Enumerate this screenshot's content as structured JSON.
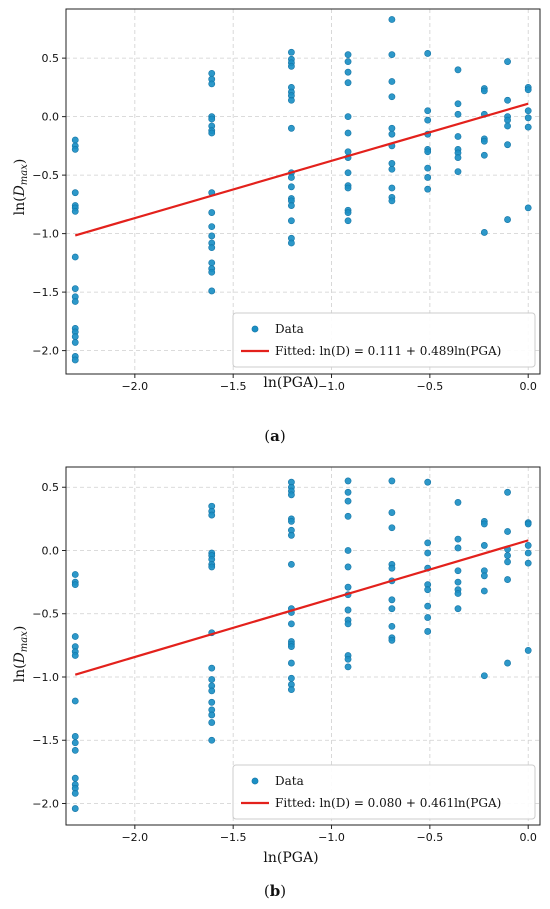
{
  "chart_data": [
    {
      "type": "scatter",
      "caption_prefix": "(",
      "caption_letter": "a",
      "caption_suffix": ")",
      "xlabel": "ln(PGA)",
      "ylabel_prefix": "ln(",
      "ylabel_D": "D",
      "ylabel_sub": "max",
      "ylabel_suffix": ")",
      "xlim": [
        -2.35,
        0.06
      ],
      "ylim": [
        -2.2,
        0.92
      ],
      "xticks": [
        -2.0,
        -1.5,
        -1.0,
        -0.5,
        0.0
      ],
      "xtick_labels": [
        "−2.0",
        "−1.5",
        "−1.0",
        "−0.5",
        "0.0"
      ],
      "yticks": [
        -2.0,
        -1.5,
        -1.0,
        -0.5,
        0.0,
        0.5
      ],
      "ytick_labels": [
        "−2.0",
        "−1.5",
        "−1.0",
        "−0.5",
        "0.0",
        "0.5"
      ],
      "grid": true,
      "legend_position": "lower-right",
      "legend": {
        "data_label": "Data",
        "fit_label": "Fitted: ln(D) = 0.111 + 0.489ln(PGA)"
      },
      "fit": {
        "intercept": 0.111,
        "slope": 0.489,
        "x_range": [
          -2.303,
          0.0
        ]
      },
      "series": [
        {
          "name": "Data",
          "points": [
            [
              -2.303,
              -0.2
            ],
            [
              -2.303,
              -0.25
            ],
            [
              -2.303,
              -0.28
            ],
            [
              -2.303,
              -0.65
            ],
            [
              -2.303,
              -0.76
            ],
            [
              -2.303,
              -0.78
            ],
            [
              -2.303,
              -0.81
            ],
            [
              -2.303,
              -1.2
            ],
            [
              -2.303,
              -1.47
            ],
            [
              -2.303,
              -1.54
            ],
            [
              -2.303,
              -1.58
            ],
            [
              -2.303,
              -1.81
            ],
            [
              -2.303,
              -1.84
            ],
            [
              -2.303,
              -1.88
            ],
            [
              -2.303,
              -1.93
            ],
            [
              -2.303,
              -2.05
            ],
            [
              -2.303,
              -2.08
            ],
            [
              -1.609,
              0.37
            ],
            [
              -1.609,
              0.32
            ],
            [
              -1.609,
              0.28
            ],
            [
              -1.609,
              0.0
            ],
            [
              -1.609,
              -0.02
            ],
            [
              -1.609,
              -0.08
            ],
            [
              -1.609,
              -0.12
            ],
            [
              -1.609,
              -0.14
            ],
            [
              -1.609,
              -0.65
            ],
            [
              -1.609,
              -0.82
            ],
            [
              -1.609,
              -0.94
            ],
            [
              -1.609,
              -1.02
            ],
            [
              -1.609,
              -1.08
            ],
            [
              -1.609,
              -1.12
            ],
            [
              -1.609,
              -1.25
            ],
            [
              -1.609,
              -1.3
            ],
            [
              -1.609,
              -1.33
            ],
            [
              -1.609,
              -1.49
            ],
            [
              -1.204,
              0.55
            ],
            [
              -1.204,
              0.49
            ],
            [
              -1.204,
              0.46
            ],
            [
              -1.204,
              0.43
            ],
            [
              -1.204,
              0.25
            ],
            [
              -1.204,
              0.21
            ],
            [
              -1.204,
              0.18
            ],
            [
              -1.204,
              0.14
            ],
            [
              -1.204,
              -0.1
            ],
            [
              -1.204,
              -0.48
            ],
            [
              -1.204,
              -0.52
            ],
            [
              -1.204,
              -0.6
            ],
            [
              -1.204,
              -0.7
            ],
            [
              -1.204,
              -0.72
            ],
            [
              -1.204,
              -0.76
            ],
            [
              -1.204,
              -0.89
            ],
            [
              -1.204,
              -1.04
            ],
            [
              -1.204,
              -1.08
            ],
            [
              -0.916,
              0.53
            ],
            [
              -0.916,
              0.47
            ],
            [
              -0.916,
              0.38
            ],
            [
              -0.916,
              0.29
            ],
            [
              -0.916,
              0.0
            ],
            [
              -0.916,
              -0.14
            ],
            [
              -0.916,
              -0.3
            ],
            [
              -0.916,
              -0.35
            ],
            [
              -0.916,
              -0.48
            ],
            [
              -0.916,
              -0.59
            ],
            [
              -0.916,
              -0.61
            ],
            [
              -0.916,
              -0.8
            ],
            [
              -0.916,
              -0.82
            ],
            [
              -0.916,
              -0.89
            ],
            [
              -0.693,
              0.83
            ],
            [
              -0.693,
              0.53
            ],
            [
              -0.693,
              0.3
            ],
            [
              -0.693,
              0.17
            ],
            [
              -0.693,
              -0.1
            ],
            [
              -0.693,
              -0.15
            ],
            [
              -0.693,
              -0.25
            ],
            [
              -0.693,
              -0.4
            ],
            [
              -0.693,
              -0.45
            ],
            [
              -0.693,
              -0.61
            ],
            [
              -0.693,
              -0.69
            ],
            [
              -0.693,
              -0.72
            ],
            [
              -0.511,
              0.54
            ],
            [
              -0.511,
              0.05
            ],
            [
              -0.511,
              -0.03
            ],
            [
              -0.511,
              -0.15
            ],
            [
              -0.511,
              -0.28
            ],
            [
              -0.511,
              -0.3
            ],
            [
              -0.511,
              -0.44
            ],
            [
              -0.511,
              -0.52
            ],
            [
              -0.511,
              -0.62
            ],
            [
              -0.357,
              0.4
            ],
            [
              -0.357,
              0.11
            ],
            [
              -0.357,
              0.02
            ],
            [
              -0.357,
              -0.17
            ],
            [
              -0.357,
              -0.28
            ],
            [
              -0.357,
              -0.31
            ],
            [
              -0.357,
              -0.35
            ],
            [
              -0.357,
              -0.47
            ],
            [
              -0.223,
              0.24
            ],
            [
              -0.223,
              0.22
            ],
            [
              -0.223,
              0.02
            ],
            [
              -0.223,
              -0.19
            ],
            [
              -0.223,
              -0.21
            ],
            [
              -0.223,
              -0.33
            ],
            [
              -0.223,
              -0.99
            ],
            [
              -0.105,
              0.47
            ],
            [
              -0.105,
              0.14
            ],
            [
              -0.105,
              0.0
            ],
            [
              -0.105,
              -0.03
            ],
            [
              -0.105,
              -0.08
            ],
            [
              -0.105,
              -0.24
            ],
            [
              -0.105,
              -0.88
            ],
            [
              0.0,
              0.25
            ],
            [
              0.0,
              0.23
            ],
            [
              0.0,
              0.05
            ],
            [
              0.0,
              -0.01
            ],
            [
              0.0,
              -0.09
            ],
            [
              0.0,
              -0.78
            ]
          ]
        }
      ],
      "colors": {
        "points": "#1b8fc4",
        "point_edge": "#1575a6",
        "fit": "#e3211c"
      }
    },
    {
      "type": "scatter",
      "caption_prefix": "(",
      "caption_letter": "b",
      "caption_suffix": ")",
      "xlabel": "ln(PGA)",
      "ylabel_prefix": "ln(",
      "ylabel_D": "D",
      "ylabel_sub": "max",
      "ylabel_suffix": ")",
      "xlim": [
        -2.35,
        0.06
      ],
      "ylim": [
        -2.17,
        0.66
      ],
      "xticks": [
        -2.0,
        -1.5,
        -1.0,
        -0.5,
        0.0
      ],
      "xtick_labels": [
        "−2.0",
        "−1.5",
        "−1.0",
        "−0.5",
        "0.0"
      ],
      "yticks": [
        -2.0,
        -1.5,
        -1.0,
        -0.5,
        0.0,
        0.5
      ],
      "ytick_labels": [
        "−2.0",
        "−1.5",
        "−1.0",
        "−0.5",
        "0.0",
        "0.5"
      ],
      "grid": true,
      "legend_position": "lower-right",
      "legend": {
        "data_label": "Data",
        "fit_label": "Fitted: ln(D) = 0.080 + 0.461ln(PGA)"
      },
      "fit": {
        "intercept": 0.08,
        "slope": 0.461,
        "x_range": [
          -2.303,
          0.0
        ]
      },
      "series": [
        {
          "name": "Data",
          "points": [
            [
              -2.303,
              -0.19
            ],
            [
              -2.303,
              -0.25
            ],
            [
              -2.303,
              -0.27
            ],
            [
              -2.303,
              -0.68
            ],
            [
              -2.303,
              -0.76
            ],
            [
              -2.303,
              -0.8
            ],
            [
              -2.303,
              -0.83
            ],
            [
              -2.303,
              -1.19
            ],
            [
              -2.303,
              -1.47
            ],
            [
              -2.303,
              -1.52
            ],
            [
              -2.303,
              -1.58
            ],
            [
              -2.303,
              -1.8
            ],
            [
              -2.303,
              -1.85
            ],
            [
              -2.303,
              -1.88
            ],
            [
              -2.303,
              -1.92
            ],
            [
              -2.303,
              -2.04
            ],
            [
              -1.609,
              0.35
            ],
            [
              -1.609,
              0.31
            ],
            [
              -1.609,
              0.28
            ],
            [
              -1.609,
              -0.02
            ],
            [
              -1.609,
              -0.04
            ],
            [
              -1.609,
              -0.07
            ],
            [
              -1.609,
              -0.11
            ],
            [
              -1.609,
              -0.13
            ],
            [
              -1.609,
              -0.65
            ],
            [
              -1.609,
              -0.93
            ],
            [
              -1.609,
              -1.02
            ],
            [
              -1.609,
              -1.07
            ],
            [
              -1.609,
              -1.11
            ],
            [
              -1.609,
              -1.2
            ],
            [
              -1.609,
              -1.26
            ],
            [
              -1.609,
              -1.3
            ],
            [
              -1.609,
              -1.36
            ],
            [
              -1.609,
              -1.5
            ],
            [
              -1.204,
              0.54
            ],
            [
              -1.204,
              0.5
            ],
            [
              -1.204,
              0.47
            ],
            [
              -1.204,
              0.44
            ],
            [
              -1.204,
              0.25
            ],
            [
              -1.204,
              0.23
            ],
            [
              -1.204,
              0.16
            ],
            [
              -1.204,
              0.12
            ],
            [
              -1.204,
              -0.11
            ],
            [
              -1.204,
              -0.46
            ],
            [
              -1.204,
              -0.49
            ],
            [
              -1.204,
              -0.58
            ],
            [
              -1.204,
              -0.72
            ],
            [
              -1.204,
              -0.74
            ],
            [
              -1.204,
              -0.76
            ],
            [
              -1.204,
              -0.89
            ],
            [
              -1.204,
              -1.01
            ],
            [
              -1.204,
              -1.06
            ],
            [
              -1.204,
              -1.1
            ],
            [
              -0.916,
              0.55
            ],
            [
              -0.916,
              0.46
            ],
            [
              -0.916,
              0.39
            ],
            [
              -0.916,
              0.27
            ],
            [
              -0.916,
              0.0
            ],
            [
              -0.916,
              -0.13
            ],
            [
              -0.916,
              -0.29
            ],
            [
              -0.916,
              -0.35
            ],
            [
              -0.916,
              -0.47
            ],
            [
              -0.916,
              -0.55
            ],
            [
              -0.916,
              -0.58
            ],
            [
              -0.916,
              -0.83
            ],
            [
              -0.916,
              -0.86
            ],
            [
              -0.916,
              -0.92
            ],
            [
              -0.693,
              0.55
            ],
            [
              -0.693,
              0.3
            ],
            [
              -0.693,
              0.18
            ],
            [
              -0.693,
              -0.11
            ],
            [
              -0.693,
              -0.14
            ],
            [
              -0.693,
              -0.24
            ],
            [
              -0.693,
              -0.39
            ],
            [
              -0.693,
              -0.46
            ],
            [
              -0.693,
              -0.6
            ],
            [
              -0.693,
              -0.69
            ],
            [
              -0.693,
              -0.71
            ],
            [
              -0.511,
              0.54
            ],
            [
              -0.511,
              0.06
            ],
            [
              -0.511,
              -0.02
            ],
            [
              -0.511,
              -0.14
            ],
            [
              -0.511,
              -0.27
            ],
            [
              -0.511,
              -0.31
            ],
            [
              -0.511,
              -0.44
            ],
            [
              -0.511,
              -0.53
            ],
            [
              -0.511,
              -0.64
            ],
            [
              -0.357,
              0.38
            ],
            [
              -0.357,
              0.09
            ],
            [
              -0.357,
              0.02
            ],
            [
              -0.357,
              -0.16
            ],
            [
              -0.357,
              -0.25
            ],
            [
              -0.357,
              -0.31
            ],
            [
              -0.357,
              -0.34
            ],
            [
              -0.357,
              -0.46
            ],
            [
              -0.223,
              0.23
            ],
            [
              -0.223,
              0.21
            ],
            [
              -0.223,
              0.04
            ],
            [
              -0.223,
              -0.16
            ],
            [
              -0.223,
              -0.2
            ],
            [
              -0.223,
              -0.32
            ],
            [
              -0.223,
              -0.99
            ],
            [
              -0.105,
              0.46
            ],
            [
              -0.105,
              0.15
            ],
            [
              -0.105,
              0.01
            ],
            [
              -0.105,
              -0.04
            ],
            [
              -0.105,
              -0.09
            ],
            [
              -0.105,
              -0.23
            ],
            [
              -0.105,
              -0.89
            ],
            [
              0.0,
              0.22
            ],
            [
              0.0,
              0.21
            ],
            [
              0.0,
              0.04
            ],
            [
              0.0,
              -0.02
            ],
            [
              0.0,
              -0.1
            ],
            [
              0.0,
              -0.79
            ]
          ]
        }
      ],
      "colors": {
        "points": "#1b8fc4",
        "point_edge": "#1575a6",
        "fit": "#e3211c"
      }
    }
  ]
}
